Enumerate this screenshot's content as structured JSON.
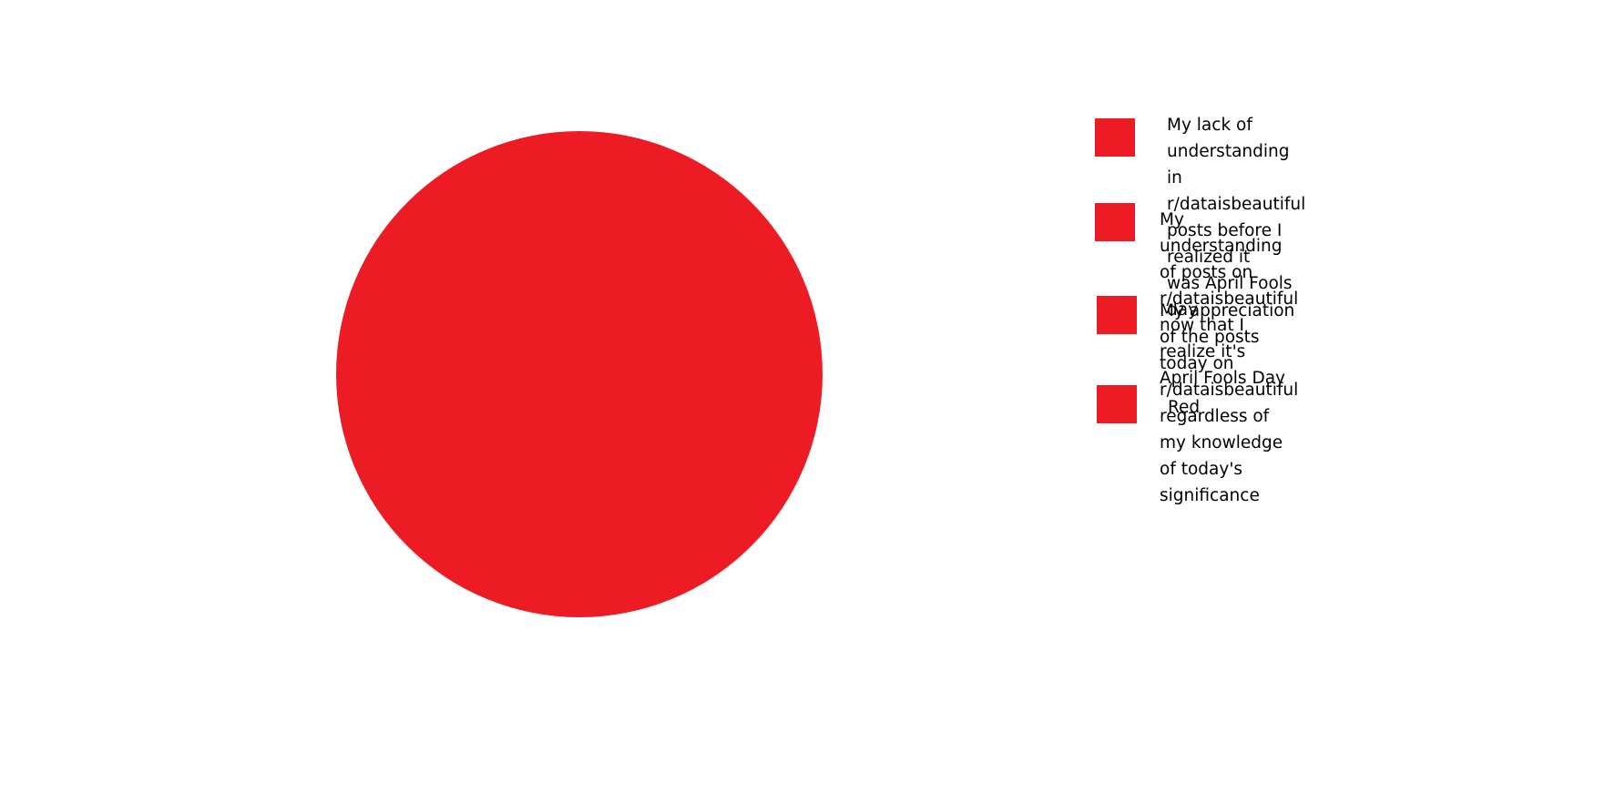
{
  "chart_data": {
    "type": "pie",
    "title": "",
    "colors": {
      "slice": "#ED1C24",
      "background": "#FFFFFF",
      "text": "#000000"
    },
    "legend_placement": "right",
    "slices": [
      {
        "label": "My lack of understanding in\nr/dataisbeautiful posts before I realized it\nwas April Fools day",
        "value": 25,
        "color": "#ED1C24"
      },
      {
        "label": "My understanding of posts on\nr/dataisbeautiful now that I realize it's\nApril Fools Day",
        "value": 25,
        "color": "#ED1C24"
      },
      {
        "label": "My appreciation of the posts today on\nr/dataisbeautiful regardless of my knowledge\nof today's significance",
        "value": 25,
        "color": "#ED1C24"
      },
      {
        "label": "Red",
        "value": 25,
        "color": "#ED1C24"
      }
    ]
  }
}
